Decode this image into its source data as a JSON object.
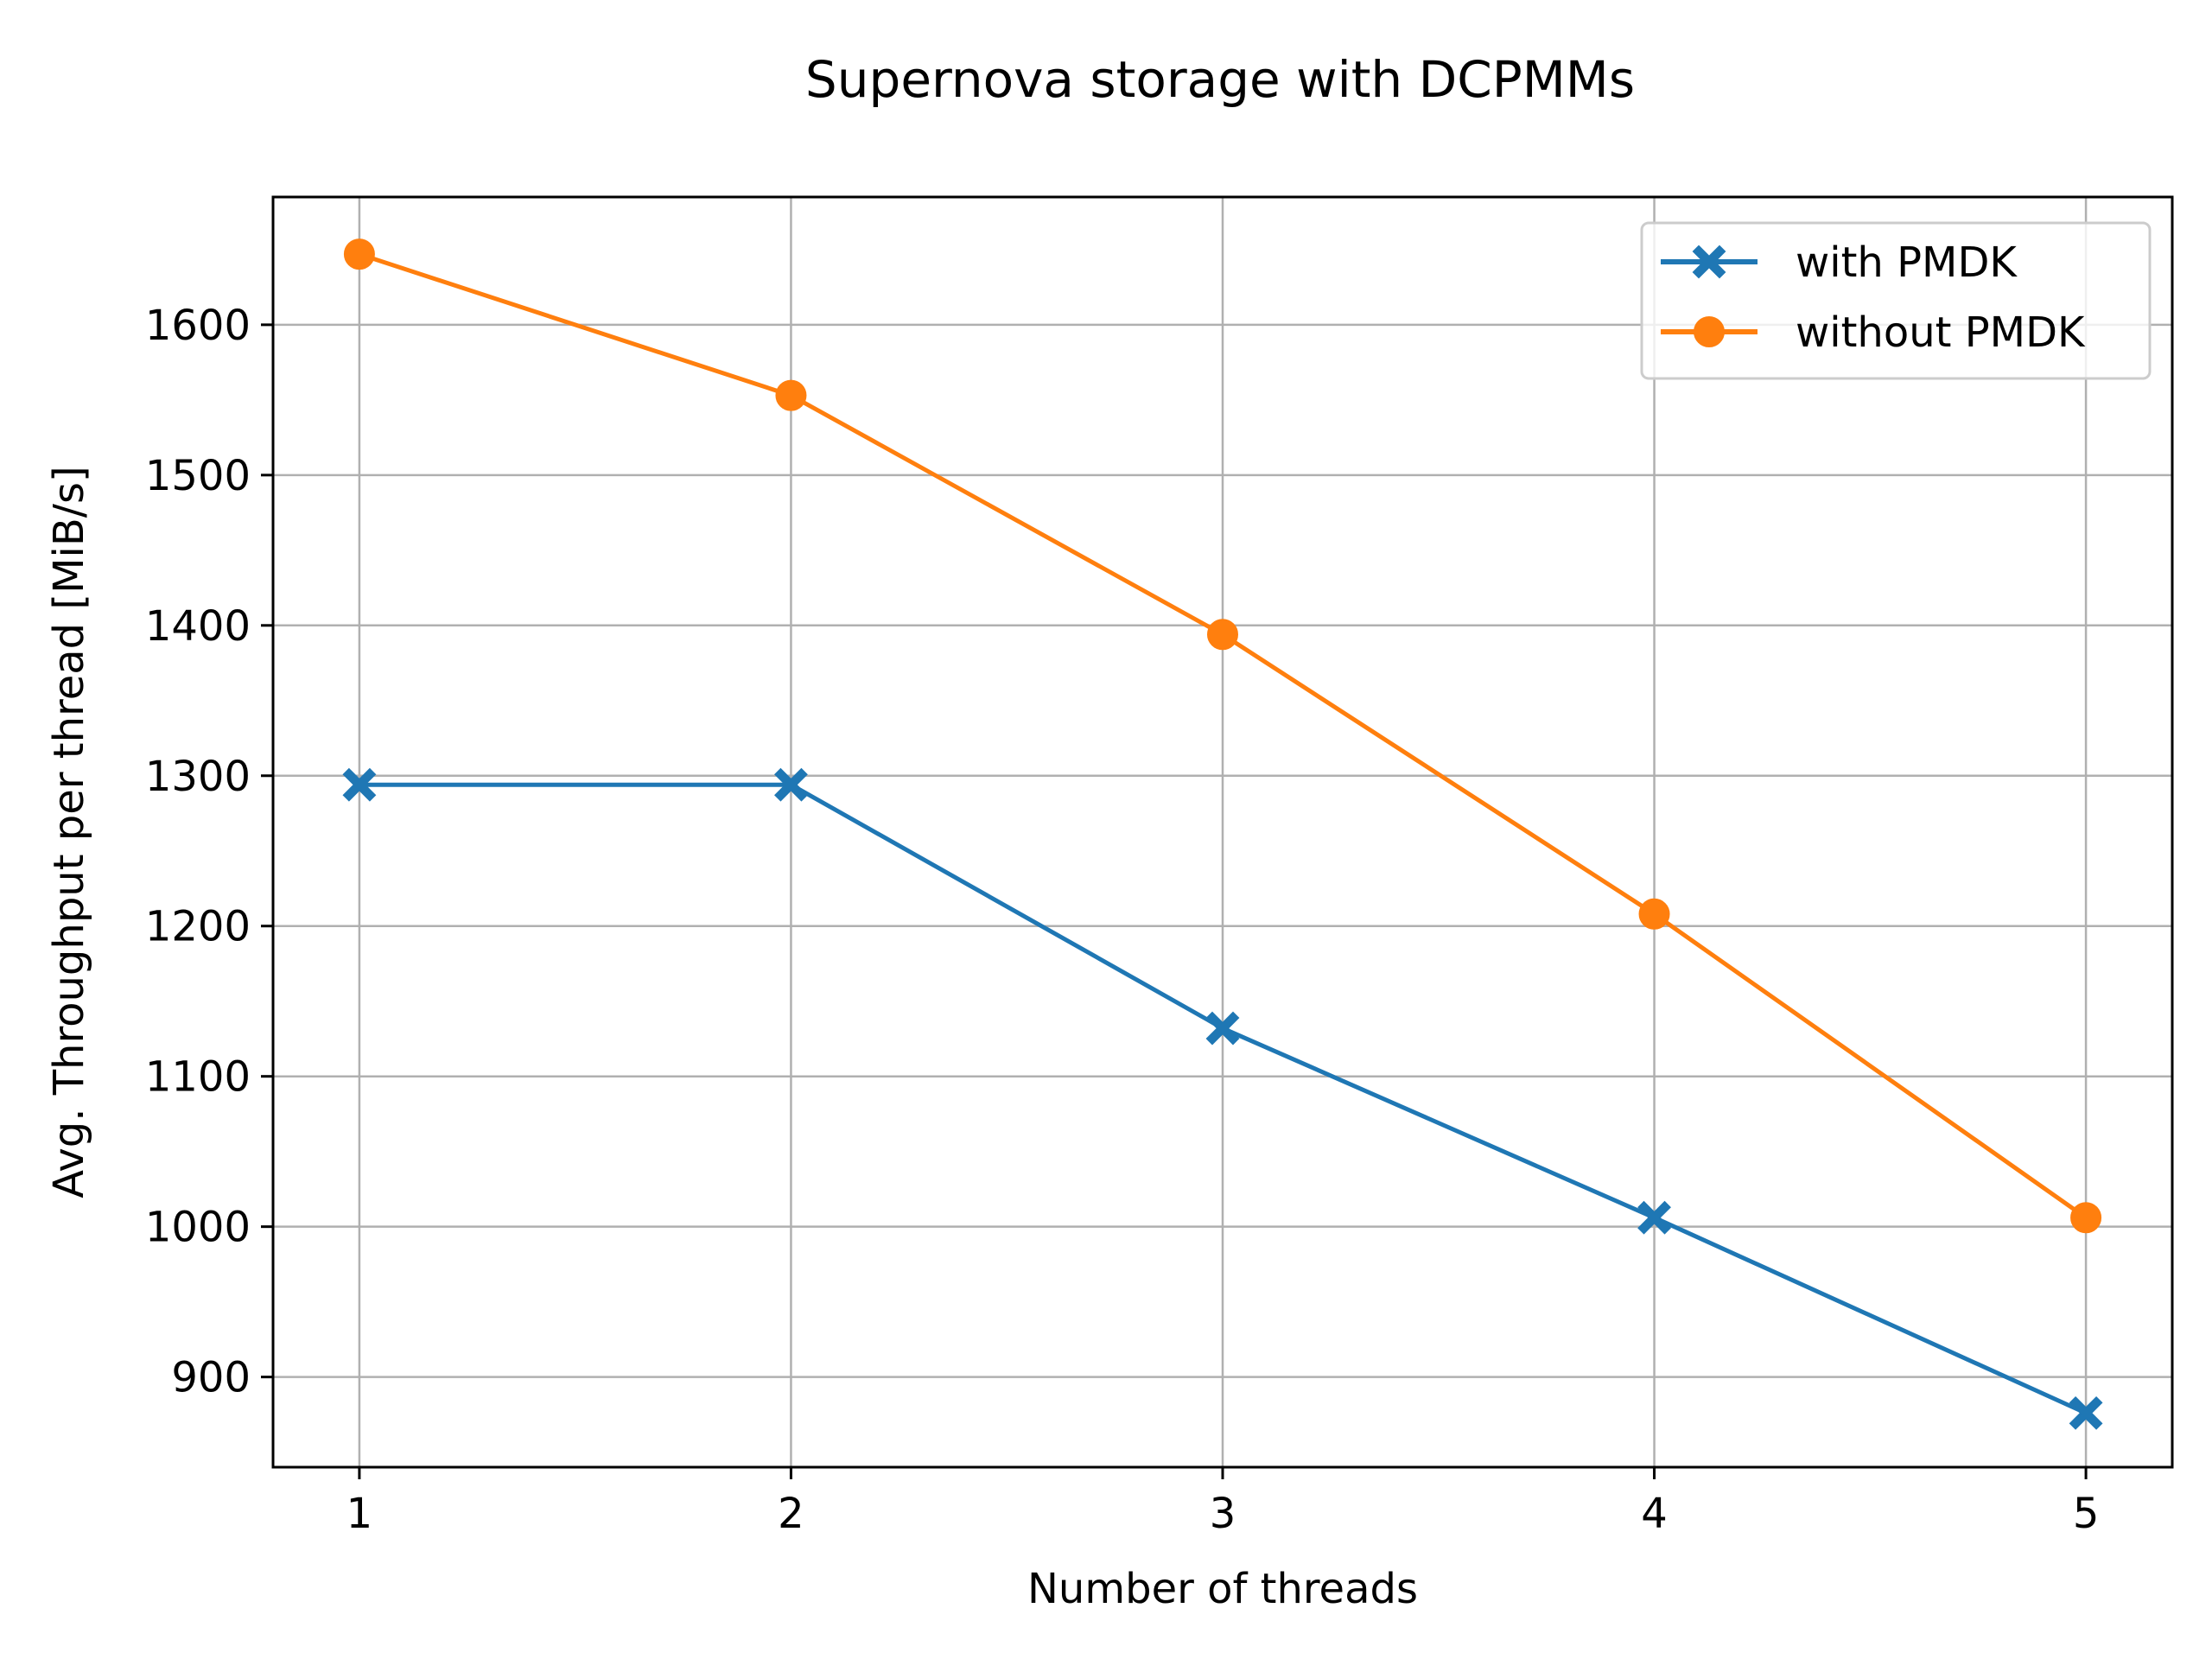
{
  "chart_data": {
    "type": "line",
    "title": "Supernova storage with DCPMMs",
    "xlabel": "Number of threads",
    "ylabel": "Avg. Throughput per thread [MiB/s]",
    "x": [
      1,
      2,
      3,
      4,
      5
    ],
    "xlim": [
      0.8,
      5.2
    ],
    "ylim": [
      840,
      1685
    ],
    "xticks": [
      "1",
      "2",
      "3",
      "4",
      "5"
    ],
    "yticks": [
      "900",
      "1000",
      "1100",
      "1200",
      "1300",
      "1400",
      "1500",
      "1600"
    ],
    "grid": true,
    "legend_position": "top-right",
    "series": [
      {
        "name": "with PMDK",
        "values": [
          1294,
          1294,
          1132,
          1006,
          876
        ],
        "color": "#1f77b4",
        "marker": "x-filled"
      },
      {
        "name": "without PMDK",
        "values": [
          1647,
          1553,
          1394,
          1208,
          1006
        ],
        "color": "#ff7f0e",
        "marker": "circle"
      }
    ]
  }
}
